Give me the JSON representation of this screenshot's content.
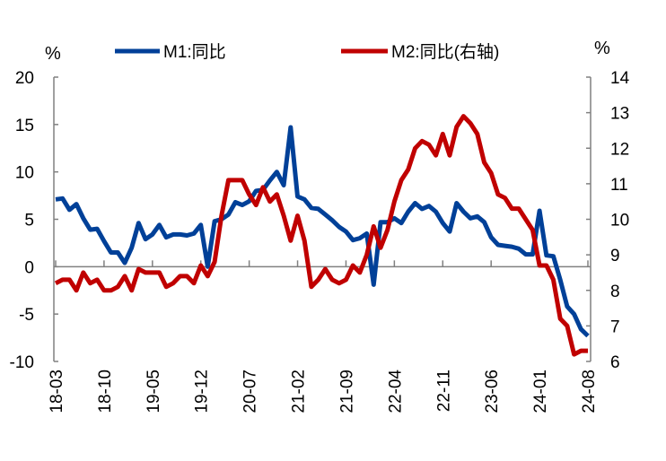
{
  "chart_data": {
    "type": "line",
    "title": "",
    "left_unit": "%",
    "right_unit": "%",
    "legend_position": "top",
    "ylim_left": [
      -10,
      20
    ],
    "yticks_left": [
      "20",
      "15",
      "10",
      "5",
      "0",
      "-5",
      "-10"
    ],
    "ylim_right": [
      6,
      14
    ],
    "yticks_right": [
      "14",
      "13",
      "12",
      "11",
      "10",
      "9",
      "8",
      "7",
      "6"
    ],
    "x_tick_labels": [
      "18-03",
      "18-10",
      "19-05",
      "19-12",
      "20-07",
      "21-02",
      "21-09",
      "22-04",
      "22-11",
      "23-06",
      "24-01",
      "24-08"
    ],
    "x_start": "2018-03",
    "x_end": "2024-08",
    "series": [
      {
        "name": "M1:同比",
        "axis": "left",
        "color": "#004098",
        "values": [
          7.1,
          7.2,
          6.0,
          6.6,
          5.1,
          3.9,
          4.0,
          2.7,
          1.5,
          1.5,
          0.4,
          2.0,
          4.6,
          2.9,
          3.4,
          4.4,
          3.1,
          3.4,
          3.4,
          3.3,
          3.5,
          4.4,
          0.0,
          4.8,
          5.0,
          5.5,
          6.8,
          6.5,
          6.9,
          8.0,
          8.1,
          9.1,
          10.0,
          8.6,
          14.7,
          7.4,
          7.1,
          6.2,
          6.1,
          5.5,
          4.9,
          4.2,
          3.7,
          2.8,
          3.0,
          3.5,
          -1.9,
          4.7,
          4.7,
          5.1,
          4.6,
          5.8,
          6.7,
          6.1,
          6.4,
          5.8,
          4.6,
          3.7,
          6.7,
          5.8,
          5.1,
          5.3,
          4.7,
          3.1,
          2.3,
          2.2,
          2.1,
          1.9,
          1.3,
          1.3,
          5.9,
          1.2,
          1.1,
          -1.4,
          -4.2,
          -5.0,
          -6.6,
          -7.3
        ]
      },
      {
        "name": "M2:同比(右轴)",
        "axis": "right",
        "color": "#C00000",
        "values": [
          8.2,
          8.3,
          8.3,
          8.0,
          8.5,
          8.2,
          8.3,
          8.0,
          8.0,
          8.1,
          8.4,
          8.0,
          8.6,
          8.5,
          8.5,
          8.5,
          8.1,
          8.2,
          8.4,
          8.4,
          8.2,
          8.7,
          8.4,
          8.8,
          10.1,
          11.1,
          11.1,
          11.1,
          10.7,
          10.4,
          10.9,
          10.5,
          10.7,
          10.1,
          9.4,
          10.1,
          9.4,
          8.1,
          8.3,
          8.6,
          8.3,
          8.2,
          8.3,
          8.7,
          8.5,
          9.0,
          9.8,
          9.2,
          9.7,
          10.5,
          11.1,
          11.4,
          12.0,
          12.2,
          12.1,
          11.8,
          12.4,
          11.8,
          12.6,
          12.9,
          12.7,
          12.4,
          11.6,
          11.3,
          10.7,
          10.6,
          10.3,
          10.3,
          10.0,
          9.7,
          8.7,
          8.7,
          8.3,
          7.2,
          7.0,
          6.2,
          6.3,
          6.3
        ]
      }
    ]
  }
}
